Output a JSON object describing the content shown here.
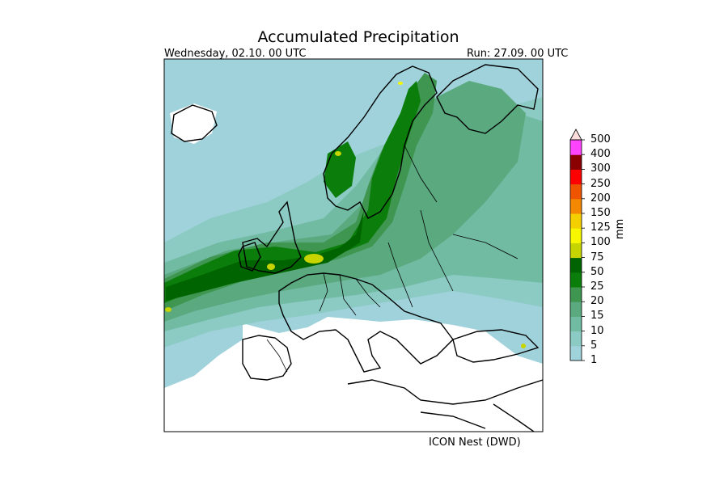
{
  "header": {
    "title": "Accumulated Precipitation",
    "valid_time": "Wednesday, 02.10. 00 UTC",
    "run_time": "Run: 27.09. 00 UTC"
  },
  "footer": {
    "model": "ICON Nest (DWD)"
  },
  "colorbar": {
    "unit": "mm",
    "extend": "max",
    "levels": [
      "1",
      "5",
      "10",
      "15",
      "20",
      "25",
      "50",
      "75",
      "100",
      "125",
      "150",
      "200",
      "250",
      "300",
      "400",
      "500"
    ],
    "colors": [
      "#a0d2dc",
      "#8ccbc4",
      "#72bba3",
      "#5aa97f",
      "#3f9650",
      "#0b7d0b",
      "#006400",
      "#c6d400",
      "#f7f700",
      "#f4d000",
      "#f48800",
      "#ef5500",
      "#ff0000",
      "#8b0000",
      "#ff44ff"
    ],
    "extend_color": "#fddcdc"
  },
  "map": {
    "region": "Europe",
    "sea_dry_color": "#a0d2dc",
    "land_dry_color": "#ffffff",
    "coastline_color": "#000000"
  }
}
